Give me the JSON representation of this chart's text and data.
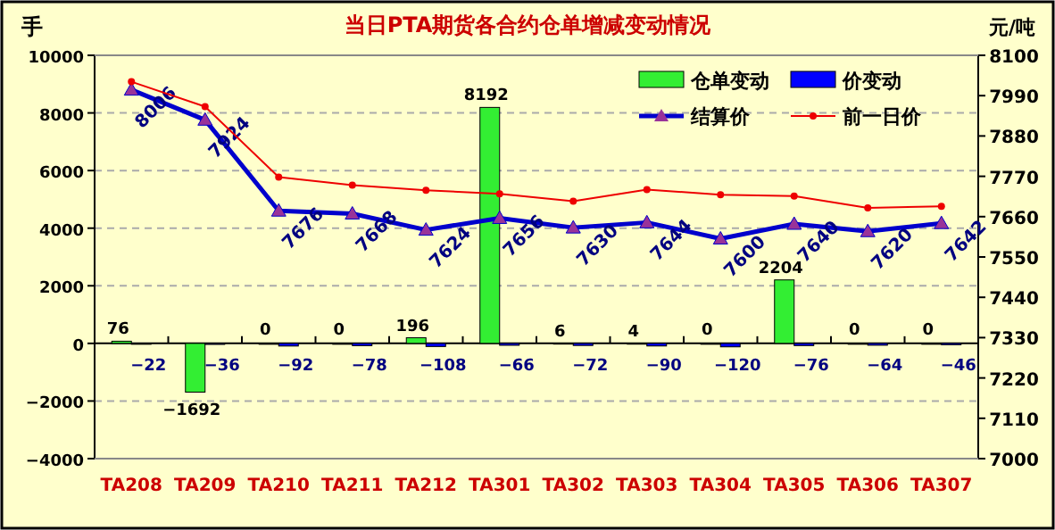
{
  "chart_data": {
    "type": "bar",
    "title": "当日PTA期货各合约仓单增减变动情况",
    "ylabel": "手",
    "y2label": "元/吨",
    "categories": [
      "TA208",
      "TA209",
      "TA210",
      "TA211",
      "TA212",
      "TA301",
      "TA302",
      "TA303",
      "TA304",
      "TA305",
      "TA306",
      "TA307"
    ],
    "series": [
      {
        "name": "仓单变动",
        "color": "#33ee33",
        "data_labels": true,
        "values": [
          76,
          -1692,
          0,
          0,
          196,
          8192,
          6,
          4,
          0,
          2204,
          0,
          0
        ]
      },
      {
        "name": "价变动",
        "color": "#0000ff",
        "data_labels": true,
        "values": [
          -22,
          -36,
          -92,
          -78,
          -108,
          -66,
          -72,
          -90,
          -120,
          -76,
          -64,
          -46
        ]
      },
      {
        "name": "结算价",
        "type": "line",
        "axis": "y2",
        "color": "#0000cc",
        "marker": "triangle",
        "data_labels": true,
        "values": [
          8006,
          7924,
          7676,
          7668,
          7624,
          7656,
          7630,
          7644,
          7600,
          7640,
          7620,
          7642
        ]
      },
      {
        "name": "前一日价",
        "type": "line",
        "axis": "y2",
        "color": "#ee0000",
        "marker": "circle",
        "values": [
          8028,
          7960,
          7768,
          7746,
          7732,
          7722,
          7702,
          7734,
          7720,
          7716,
          7684,
          7688
        ]
      }
    ],
    "ylim": [
      -4000,
      10000
    ],
    "yticks": [
      -4000,
      -2000,
      0,
      2000,
      4000,
      6000,
      8000,
      10000
    ],
    "y2lim": [
      7000,
      8100
    ],
    "y2ticks": [
      7000,
      7110,
      7220,
      7330,
      7440,
      7550,
      7660,
      7770,
      7880,
      7990,
      8100
    ],
    "grid": "y",
    "legend": "top right"
  }
}
